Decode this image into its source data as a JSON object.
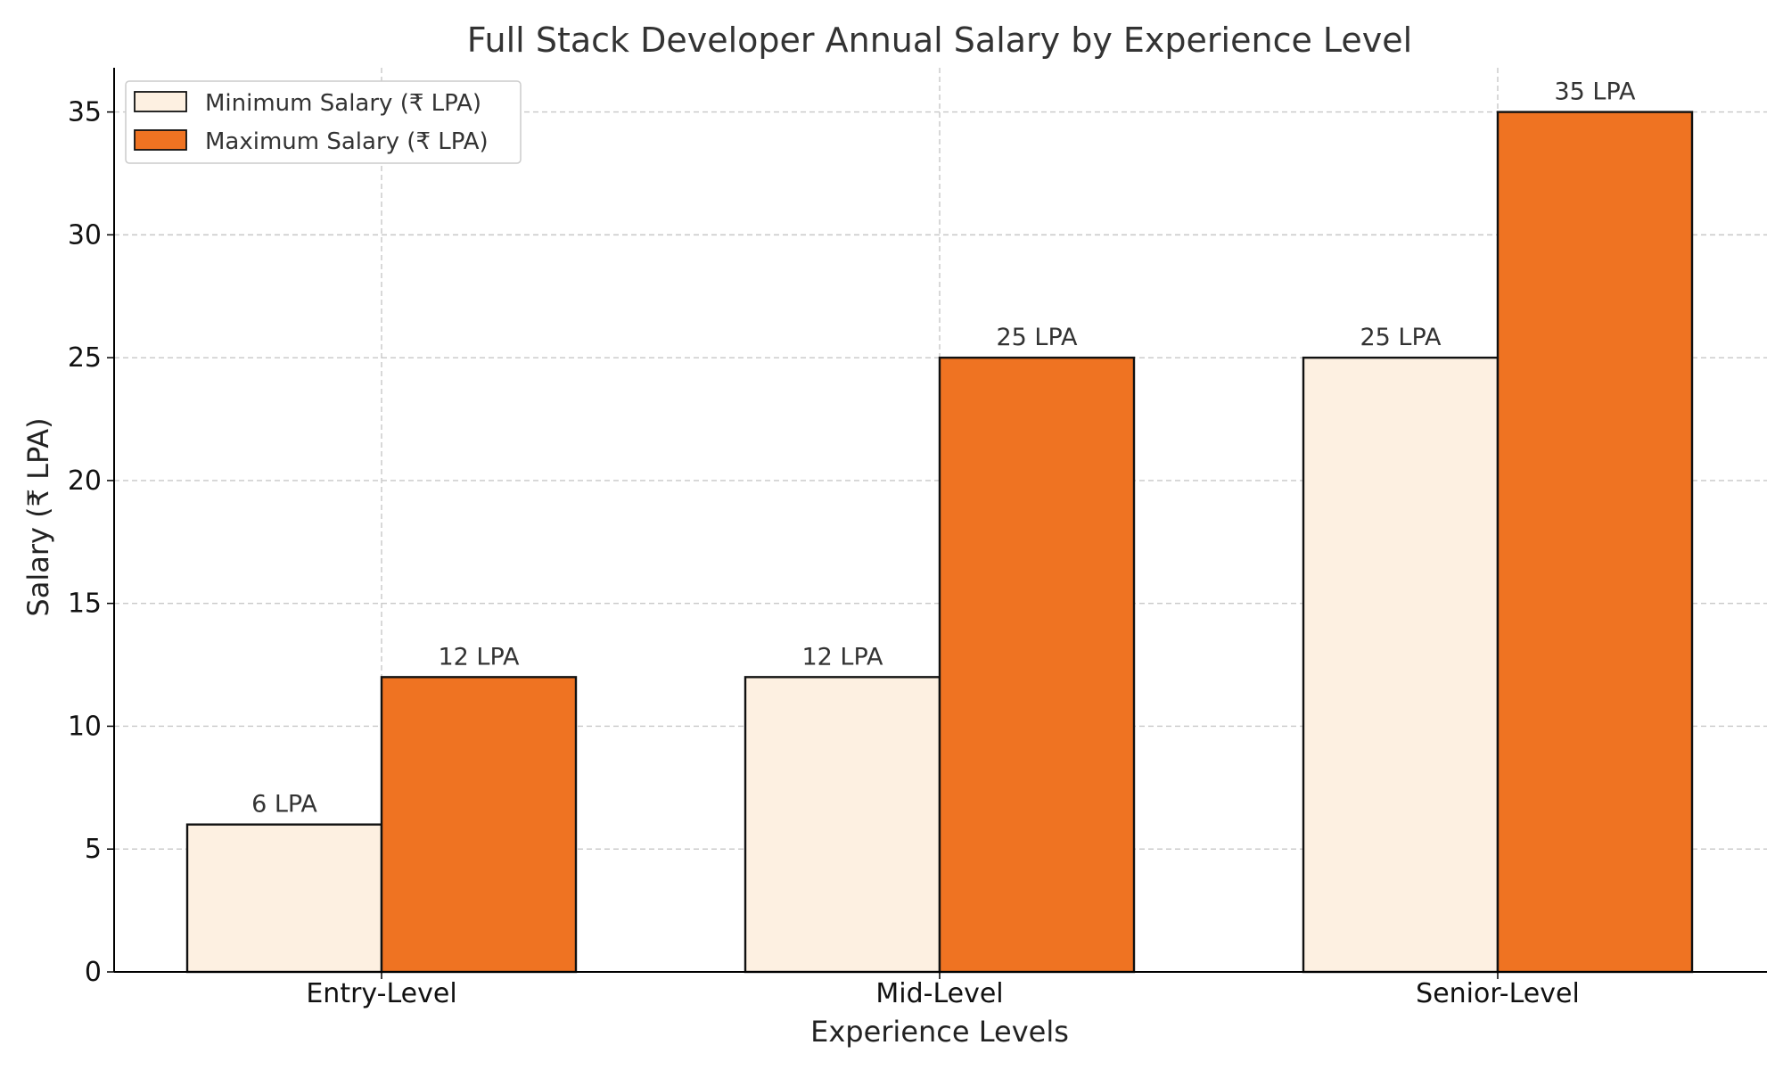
{
  "chart_data": {
    "type": "bar",
    "title": "Full Stack Developer Annual Salary by Experience Level",
    "xlabel": "Experience Levels",
    "ylabel": "Salary (₹ LPA)",
    "categories": [
      "Entry-Level",
      "Mid-Level",
      "Senior-Level"
    ],
    "ylim": [
      0,
      36.8
    ],
    "yticks": [
      0,
      5,
      10,
      15,
      20,
      25,
      30,
      35
    ],
    "grid": true,
    "legend_position": "top-left",
    "series": [
      {
        "name": "Minimum Salary (₹ LPA)",
        "values": [
          6,
          12,
          25
        ],
        "labels": [
          "6 LPA",
          "12 LPA",
          "25 LPA"
        ],
        "color": "#FDF0E1"
      },
      {
        "name": "Maximum Salary (₹ LPA)",
        "values": [
          12,
          25,
          35
        ],
        "labels": [
          "12 LPA",
          "25 LPA",
          "35 LPA"
        ],
        "color": "#EF7322"
      }
    ]
  }
}
